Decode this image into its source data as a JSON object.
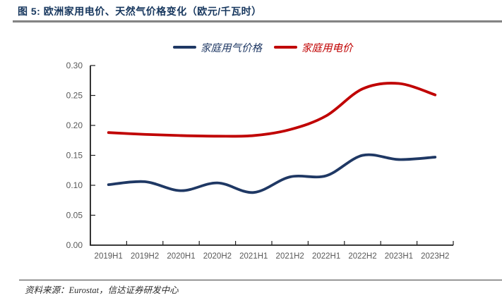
{
  "header": {
    "title": "图 5: 欧洲家用电价、天然气价格变化（欧元/千瓦时）"
  },
  "chart_data": {
    "type": "line",
    "smooth": true,
    "grid": false,
    "legend_position": "top-center",
    "categories": [
      "2019H1",
      "2019H2",
      "2020H1",
      "2020H2",
      "2021H1",
      "2021H2",
      "2022H1",
      "2022H2",
      "2023H1",
      "2023H2"
    ],
    "series": [
      {
        "id": "gas",
        "name": "家庭用气价格",
        "color": "#1f3864",
        "values": [
          0.101,
          0.106,
          0.091,
          0.104,
          0.088,
          0.114,
          0.116,
          0.15,
          0.143,
          0.147
        ]
      },
      {
        "id": "electricity",
        "name": "家庭用电价",
        "color": "#c00000",
        "values": [
          0.188,
          0.185,
          0.183,
          0.182,
          0.183,
          0.193,
          0.216,
          0.261,
          0.27,
          0.251
        ]
      }
    ],
    "ylim": [
      0,
      0.3
    ],
    "ytick_step": 0.05,
    "ytick_labels": [
      "0.00",
      "0.05",
      "0.10",
      "0.15",
      "0.20",
      "0.25",
      "0.30"
    ],
    "xlabel": "",
    "ylabel": "",
    "axis_color": "#1f1f1f",
    "tick_label_color": "#595959"
  },
  "footer": {
    "source": "资料来源：Eurostat，信达证券研发中心"
  }
}
